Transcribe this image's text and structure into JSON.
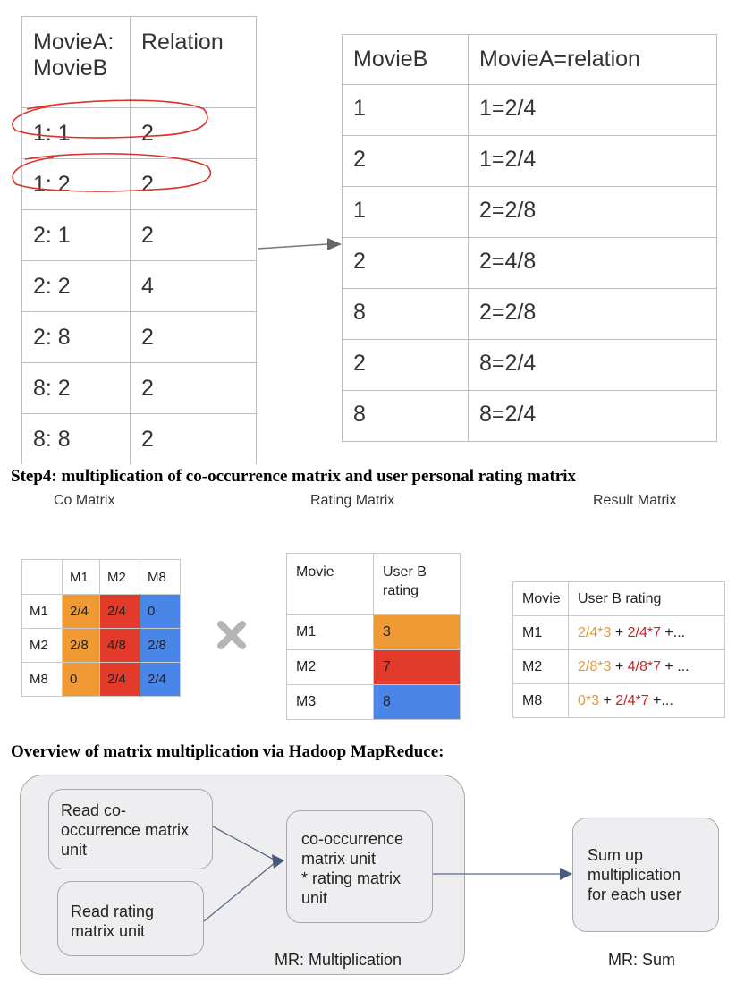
{
  "relation_table": {
    "headers": [
      "MovieA:\nMovieB",
      "Relation"
    ],
    "rows": [
      [
        "1: 1",
        "2"
      ],
      [
        "1: 2",
        "2"
      ],
      [
        "2: 1",
        "2"
      ],
      [
        "2: 2",
        "4"
      ],
      [
        "2: 8",
        "2"
      ],
      [
        "8: 2",
        "2"
      ],
      [
        "8: 8",
        "2"
      ]
    ]
  },
  "normalized_table": {
    "headers": [
      "MovieB",
      "MovieA=relation"
    ],
    "rows": [
      [
        "1",
        "1=2/4"
      ],
      [
        "2",
        "1=2/4"
      ],
      [
        "1",
        "2=2/8"
      ],
      [
        "2",
        "2=4/8"
      ],
      [
        "8",
        "2=2/8"
      ],
      [
        "2",
        "8=2/4"
      ],
      [
        "8",
        "8=2/4"
      ]
    ]
  },
  "step4_heading": "Step4: multiplication of co-occurrence matrix and user personal rating matrix",
  "captions": {
    "co": "Co Matrix",
    "rating": "Rating Matrix",
    "result": "Result Matrix"
  },
  "co_matrix": {
    "col_headers": [
      "M1",
      "M2",
      "M8"
    ],
    "rows": [
      {
        "label": "M1",
        "cells": [
          "2/4",
          "2/4",
          "0"
        ]
      },
      {
        "label": "M2",
        "cells": [
          "2/8",
          "4/8",
          "2/8"
        ]
      },
      {
        "label": "M8",
        "cells": [
          "0",
          "2/4",
          "2/4"
        ]
      }
    ]
  },
  "colors": {
    "orange": "#ef9a35",
    "red": "#e23b2c",
    "blue": "#4a86e8",
    "orange_text": "#e8972b",
    "red_text": "#cc2020"
  },
  "rating_matrix": {
    "headers": [
      "Movie",
      "User B\nrating"
    ],
    "rows": [
      [
        "M1",
        "3"
      ],
      [
        "M2",
        "7"
      ],
      [
        "M3",
        "8"
      ]
    ]
  },
  "result_matrix": {
    "headers": [
      "Movie",
      "User B rating"
    ],
    "rows": [
      {
        "movie": "M1",
        "a": "2/4*3",
        "b": "2/4*7",
        "tail": " +..."
      },
      {
        "movie": "M2",
        "a": "2/8*3",
        "b": "4/8*7",
        "tail": " + ..."
      },
      {
        "movie": "M8",
        "a": "0*3",
        "b": "2/4*7",
        "tail": " +..."
      }
    ]
  },
  "overview_heading": "Overview of matrix multiplication via Hadoop MapReduce:",
  "flow": {
    "read_co": "Read co-\noccurrence matrix\nunit",
    "read_rating": "Read rating\nmatrix unit",
    "multiply": "co-occurrence\nmatrix unit\n * rating matrix\nunit",
    "sum": "Sum up\nmultiplication\nfor each user",
    "mr_mult": "MR: Multiplication",
    "mr_sum": "MR: Sum"
  }
}
